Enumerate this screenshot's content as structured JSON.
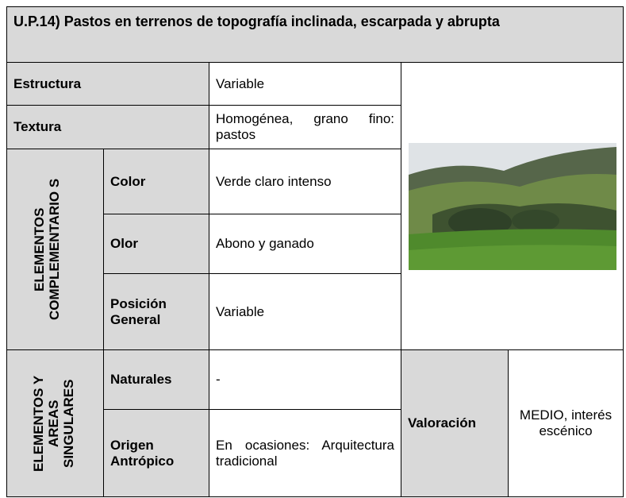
{
  "table": {
    "title": "U.P.14) Pastos en terrenos de topografía inclinada, escarpada y abrupta",
    "estructura": {
      "label": "Estructura",
      "value": "Variable"
    },
    "textura": {
      "label": "Textura",
      "value": "Homogénea, grano fino: pastos"
    },
    "complementarios": {
      "group": "ELEMENTOS COMPLEMENTARIO S",
      "rows": [
        {
          "label": "Color",
          "value": "Verde claro intenso"
        },
        {
          "label": "Olor",
          "value": "Abono y ganado"
        },
        {
          "label": "Posición General",
          "value": "Variable"
        }
      ]
    },
    "singulares": {
      "group": "ELEMENTOS Y AREAS SINGULARES",
      "rows": [
        {
          "label": "Naturales",
          "value": "-"
        },
        {
          "label": "Origen Antrópico",
          "value": "En ocasiones: Arquitectura tradicional"
        }
      ]
    },
    "valoracion": {
      "label": "Valoración",
      "value": "MEDIO, interés escénico"
    }
  }
}
